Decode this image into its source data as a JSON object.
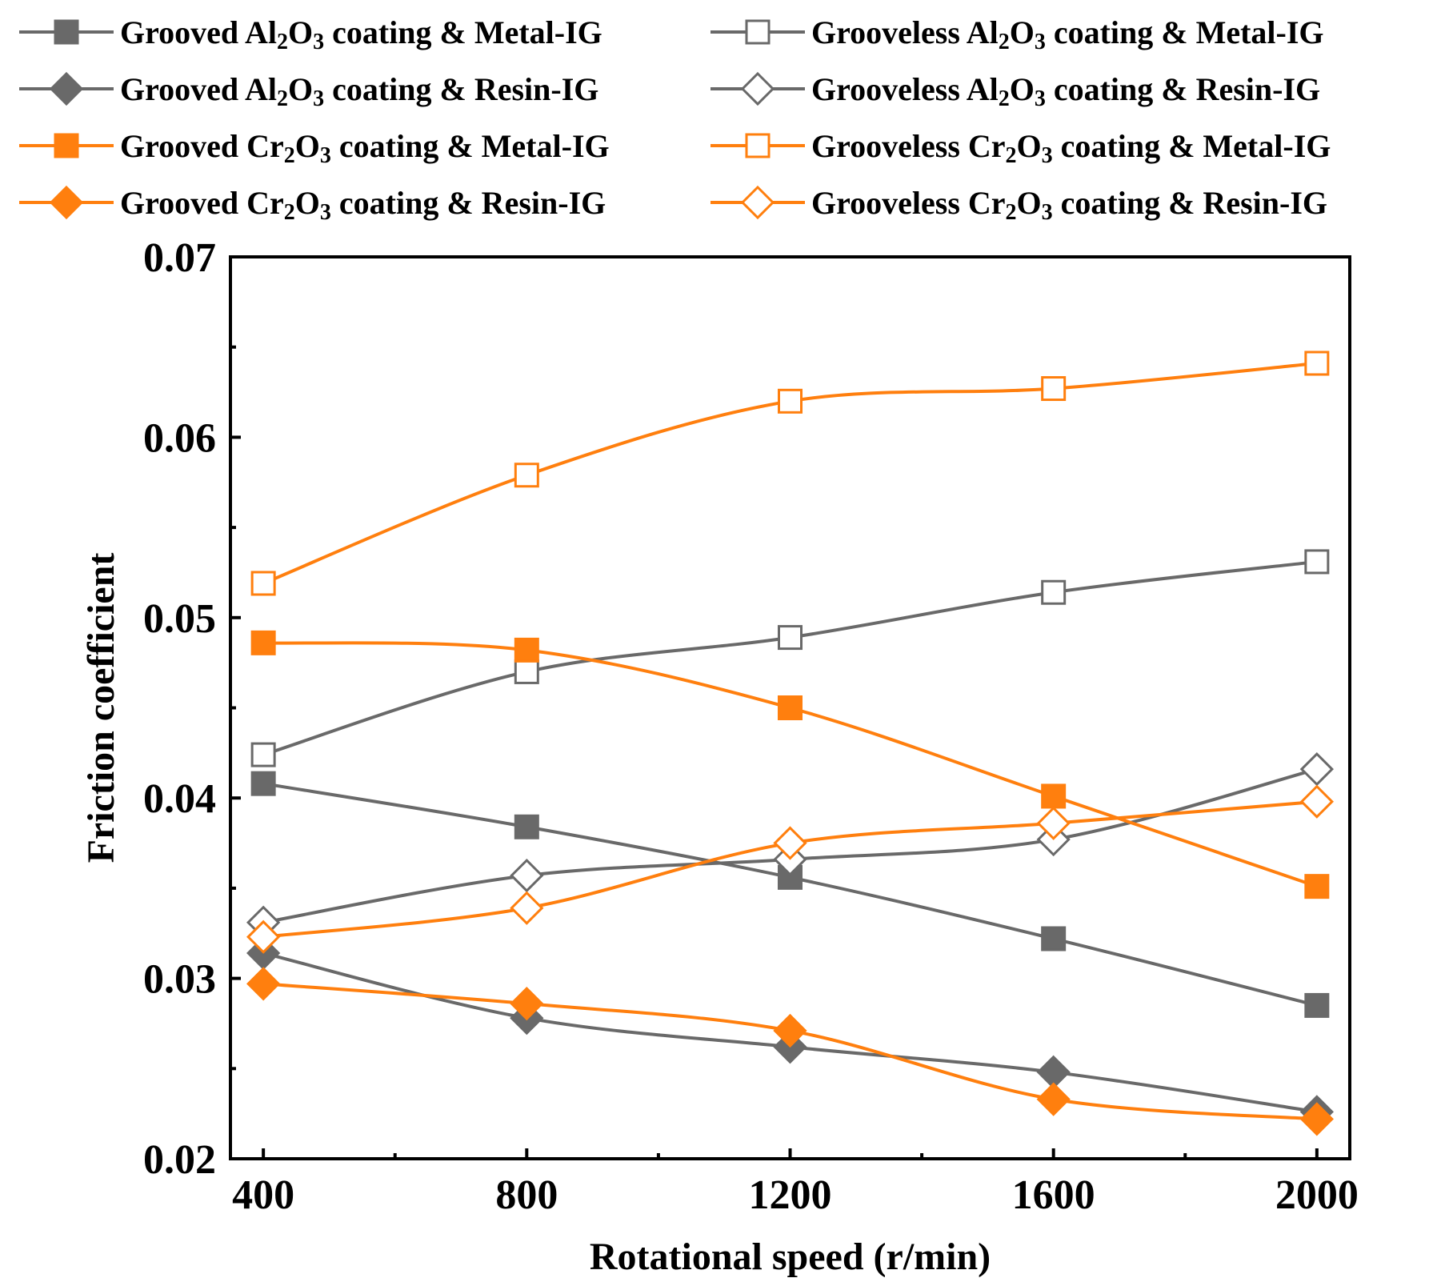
{
  "chart_data": {
    "type": "line",
    "xlabel": "Rotational speed (r/min)",
    "ylabel": "Friction coefficient",
    "x": [
      400,
      800,
      1200,
      1600,
      2000
    ],
    "xlim": [
      350,
      2050
    ],
    "ylim": [
      0.02,
      0.07
    ],
    "x_ticks": [
      "400",
      "800",
      "1200",
      "1600",
      "2000"
    ],
    "y_ticks": [
      "0.02",
      "0.03",
      "0.04",
      "0.05",
      "0.06",
      "0.07"
    ],
    "grid": false,
    "legend_position": "top, above plot, two columns",
    "series": [
      {
        "name": "Grooved Al2O3 coating & Metal-IG",
        "parts": [
          "Grooved Al",
          "2",
          "O",
          "3",
          " coating & Metal-IG"
        ],
        "color": "#696969",
        "marker": "square",
        "filled": true,
        "values": [
          0.0408,
          0.0384,
          0.0356,
          0.0322,
          0.0285
        ]
      },
      {
        "name": "Grooveless Al2O3 coating & Metal-IG",
        "parts": [
          "Grooveless Al",
          "2",
          "O",
          "3",
          " coating & Metal-IG"
        ],
        "color": "#696969",
        "marker": "square",
        "filled": false,
        "values": [
          0.0424,
          0.047,
          0.0489,
          0.0514,
          0.0531
        ]
      },
      {
        "name": "Grooved Al2O3 coating & Resin-IG",
        "parts": [
          "Grooved Al",
          "2",
          "O",
          "3",
          " coating & Resin-IG"
        ],
        "color": "#696969",
        "marker": "diamond",
        "filled": true,
        "values": [
          0.0314,
          0.0278,
          0.0262,
          0.0248,
          0.0226
        ]
      },
      {
        "name": "Grooveless Al2O3 coating & Resin-IG",
        "parts": [
          "Grooveless Al",
          "2",
          "O",
          "3",
          " coating & Resin-IG"
        ],
        "color": "#696969",
        "marker": "diamond",
        "filled": false,
        "values": [
          0.0331,
          0.0357,
          0.0366,
          0.0377,
          0.0416
        ]
      },
      {
        "name": "Grooved Cr2O3 coating & Metal-IG",
        "parts": [
          "Grooved Cr",
          "2",
          "O",
          "3",
          " coating & Metal-IG"
        ],
        "color": "#ff7f0e",
        "marker": "square",
        "filled": true,
        "values": [
          0.0486,
          0.0482,
          0.045,
          0.0401,
          0.0351
        ]
      },
      {
        "name": "Grooveless Cr2O3 coating & Metal-IG",
        "parts": [
          "Grooveless Cr",
          "2",
          "O",
          "3",
          " coating & Metal-IG"
        ],
        "color": "#ff7f0e",
        "marker": "square",
        "filled": false,
        "values": [
          0.0519,
          0.0579,
          0.062,
          0.0627,
          0.0641
        ]
      },
      {
        "name": "Grooved Cr2O3 coating & Resin-IG",
        "parts": [
          "Grooved Cr",
          "2",
          "O",
          "3",
          " coating & Resin-IG"
        ],
        "color": "#ff7f0e",
        "marker": "diamond",
        "filled": true,
        "values": [
          0.0297,
          0.0286,
          0.0271,
          0.0233,
          0.0222
        ]
      },
      {
        "name": "Grooveless Cr2O3 coating & Resin-IG",
        "parts": [
          "Grooveless Cr",
          "2",
          "O",
          "3",
          " coating & Resin-IG"
        ],
        "color": "#ff7f0e",
        "marker": "diamond",
        "filled": false,
        "values": [
          0.0323,
          0.0339,
          0.0375,
          0.0386,
          0.0398
        ]
      }
    ]
  }
}
